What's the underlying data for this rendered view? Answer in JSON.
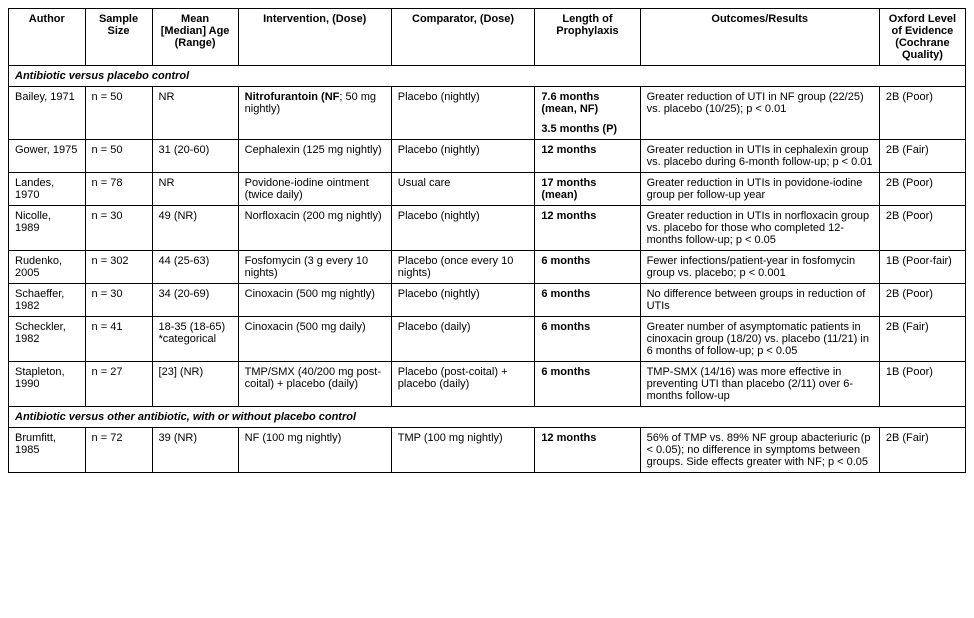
{
  "headers": [
    "Author",
    "Sample Size",
    "Mean [Median] Age (Range)",
    "Intervention, (Dose)",
    "Comparator, (Dose)",
    "Length of Prophylaxis",
    "Outcomes/Results",
    "Oxford Level of Evidence (Cochrane Quality)"
  ],
  "section1": "Antibiotic versus placebo control",
  "section2": "Antibiotic versus other antibiotic, with or without placebo control",
  "rows1": [
    {
      "author": "Bailey, 1971",
      "sample": "n = 50",
      "age": "NR",
      "intervention_bold": "Nitrofurantoin (NF",
      "intervention_rest": "; 50 mg nightly)",
      "comparator": "Placebo (nightly)",
      "length_bold": "7.6 months (mean, NF)",
      "length_bold2": "3.5 months (P)",
      "outcomes": "Greater reduction of UTI in NF group (22/25) vs. placebo (10/25); p < 0.01",
      "evidence": "2B (Poor)"
    },
    {
      "author": "Gower, 1975",
      "sample": "n = 50",
      "age": "31 (20-60)",
      "intervention": "Cephalexin (125 mg nightly)",
      "comparator": "Placebo (nightly)",
      "length_bold": "12 months",
      "outcomes": "Greater reduction in UTIs in cephalexin group vs. placebo during 6-month follow-up; p < 0.01",
      "evidence": "2B (Fair)"
    },
    {
      "author": "Landes, 1970",
      "sample": "n = 78",
      "age": "NR",
      "intervention": "Povidone-iodine ointment (twice daily)",
      "comparator": "Usual care",
      "length_bold": "17 months (mean)",
      "outcomes": "Greater reduction in UTIs in povidone-iodine group per follow-up year",
      "evidence": "2B (Poor)"
    },
    {
      "author": "Nicolle, 1989",
      "sample": "n = 30",
      "age": "49 (NR)",
      "intervention": "Norfloxacin (200 mg nightly)",
      "comparator": "Placebo (nightly)",
      "length_bold": "12 months",
      "outcomes": "Greater reduction in UTIs in norfloxacin group vs. placebo for those who completed 12-months follow-up; p < 0.05",
      "evidence": "2B (Poor)"
    },
    {
      "author": "Rudenko, 2005",
      "sample": "n = 302",
      "age": "44 (25-63)",
      "intervention": "Fosfomycin (3 g every 10 nights)",
      "comparator": "Placebo (once every 10 nights)",
      "length_bold": "6 months",
      "outcomes": "Fewer infections/patient-year in fosfomycin group vs. placebo; p < 0.001",
      "evidence": "1B (Poor-fair)"
    },
    {
      "author": "Schaeffer, 1982",
      "sample": "n = 30",
      "age": "34 (20-69)",
      "intervention": "Cinoxacin (500 mg nightly)",
      "comparator": "Placebo (nightly)",
      "length_bold": "6 months",
      "outcomes": "No difference between groups in reduction of UTIs",
      "evidence": "2B (Poor)"
    },
    {
      "author": "Scheckler, 1982",
      "sample": "n = 41",
      "age": "18-35 (18-65) *categorical",
      "intervention": "Cinoxacin (500 mg daily)",
      "comparator": "Placebo (daily)",
      "length_bold": "6 months",
      "outcomes": "Greater number of asymptomatic patients in cinoxacin group (18/20) vs. placebo (11/21) in 6 months of follow-up; p < 0.05",
      "evidence": "2B (Fair)"
    },
    {
      "author": "Stapleton, 1990",
      "sample": "n = 27",
      "age": "[23] (NR)",
      "intervention": "TMP/SMX (40/200 mg post-coital) + placebo (daily)",
      "comparator": "Placebo (post-coital) + placebo (daily)",
      "length_bold": "6 months",
      "outcomes": "TMP-SMX (14/16) was more effective in preventing UTI than placebo (2/11) over 6-months follow-up",
      "evidence": "1B (Poor)"
    }
  ],
  "rows2": [
    {
      "author": "Brumfitt, 1985",
      "sample": "n = 72",
      "age": "39 (NR)",
      "intervention": "NF (100 mg nightly)",
      "comparator": "TMP (100 mg nightly)",
      "length_bold": "12 months",
      "outcomes": "56% of TMP vs. 89% NF group abacteriuric (p < 0.05); no difference in symptoms between groups. Side effects greater with NF; p < 0.05",
      "evidence": "2B (Fair)"
    }
  ]
}
